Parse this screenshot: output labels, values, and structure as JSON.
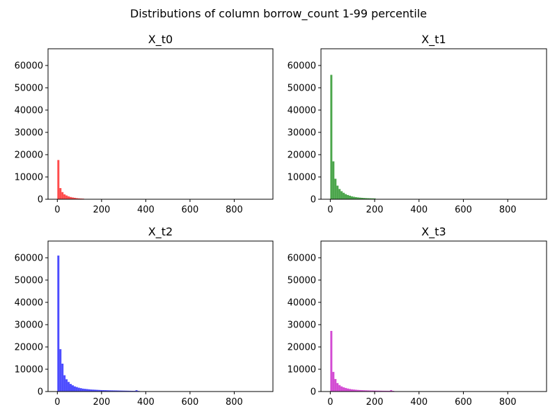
{
  "suptitle": "Distributions of column borrow_count 1-99 percentile",
  "chart_data": [
    {
      "type": "bar",
      "title": "X_t0",
      "color": "#ff0000",
      "opacity": 0.7,
      "xlim": [
        -42,
        975
      ],
      "ylim": [
        0,
        67500
      ],
      "xticks": [
        0,
        200,
        400,
        600,
        800
      ],
      "yticks": [
        0,
        10000,
        20000,
        30000,
        40000,
        50000,
        60000
      ],
      "bin_width": 9.3,
      "bin_start": 0,
      "values": [
        17600,
        5000,
        3200,
        2200,
        1700,
        1300,
        1000,
        800,
        650,
        500,
        400,
        330,
        280
      ]
    },
    {
      "type": "bar",
      "title": "X_t1",
      "color": "#008000",
      "opacity": 0.7,
      "xlim": [
        -42,
        975
      ],
      "ylim": [
        0,
        67500
      ],
      "xticks": [
        0,
        200,
        400,
        600,
        800
      ],
      "yticks": [
        0,
        10000,
        20000,
        30000,
        40000,
        50000,
        60000
      ],
      "bin_width": 9.3,
      "bin_start": 0,
      "values": [
        55800,
        17000,
        9200,
        6100,
        4600,
        3600,
        2900,
        2300,
        1900,
        1600,
        1300,
        1100,
        950,
        820,
        720,
        640,
        570,
        510,
        470,
        430,
        400,
        380
      ]
    },
    {
      "type": "bar",
      "title": "X_t2",
      "color": "#0000ff",
      "opacity": 0.7,
      "xlim": [
        -42,
        975
      ],
      "ylim": [
        0,
        67500
      ],
      "xticks": [
        0,
        200,
        400,
        600,
        800
      ],
      "yticks": [
        0,
        10000,
        20000,
        30000,
        40000,
        50000,
        60000
      ],
      "bin_width": 9.3,
      "bin_start": 0,
      "values": [
        61000,
        19000,
        12500,
        7300,
        5500,
        4300,
        3400,
        2800,
        2300,
        2000,
        1700,
        1500,
        1300,
        1200,
        1100,
        1000,
        900,
        850,
        800,
        750,
        700,
        650,
        620,
        600,
        570,
        540,
        520,
        500,
        480,
        460,
        440,
        420,
        400,
        380,
        360,
        340,
        320,
        300,
        600,
        280
      ]
    },
    {
      "type": "bar",
      "title": "X_t3",
      "color": "#c000c0",
      "opacity": 0.7,
      "xlim": [
        -42,
        975
      ],
      "ylim": [
        0,
        67500
      ],
      "xticks": [
        0,
        200,
        400,
        600,
        800
      ],
      "yticks": [
        0,
        10000,
        20000,
        30000,
        40000,
        50000,
        60000
      ],
      "bin_width": 9.3,
      "bin_start": 0,
      "values": [
        27200,
        8800,
        5600,
        3800,
        2900,
        2300,
        1900,
        1600,
        1350,
        1150,
        1000,
        900,
        800,
        720,
        660,
        610,
        570,
        530,
        500,
        470,
        450,
        430,
        410,
        390,
        370,
        350,
        340,
        330,
        320,
        650,
        300
      ]
    }
  ]
}
